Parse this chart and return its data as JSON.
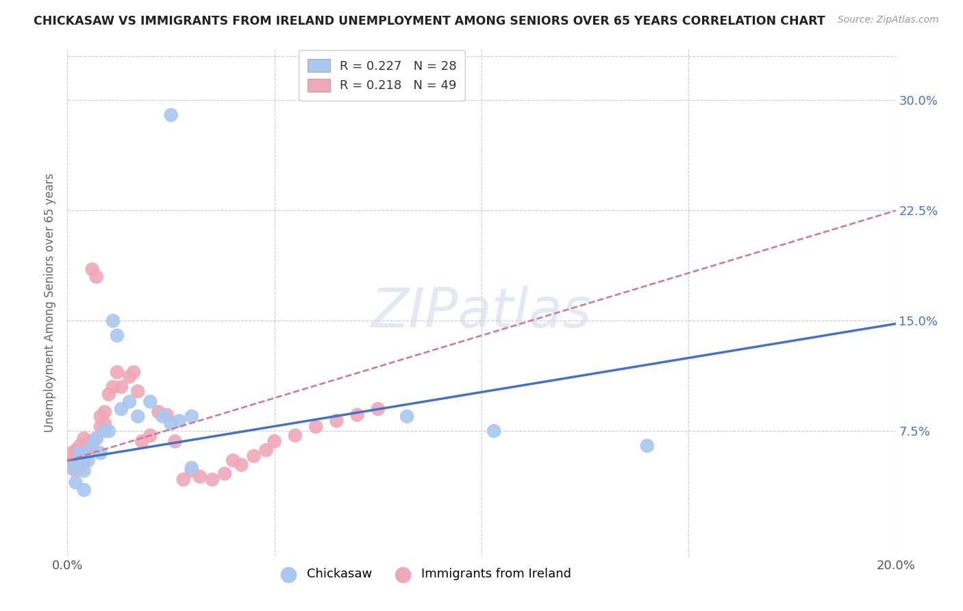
{
  "title": "CHICKASAW VS IMMIGRANTS FROM IRELAND UNEMPLOYMENT AMONG SENIORS OVER 65 YEARS CORRELATION CHART",
  "source": "Source: ZipAtlas.com",
  "ylabel": "Unemployment Among Seniors over 65 years",
  "xlim": [
    0.0,
    0.2
  ],
  "ylim": [
    -0.01,
    0.335
  ],
  "xtick_positions": [
    0.0,
    0.05,
    0.1,
    0.15,
    0.2
  ],
  "xtick_labels": [
    "0.0%",
    "",
    "",
    "",
    "20.0%"
  ],
  "ytick_positions": [
    0.075,
    0.15,
    0.225,
    0.3
  ],
  "ytick_labels": [
    "7.5%",
    "15.0%",
    "22.5%",
    "30.0%"
  ],
  "grid_color": "#cccccc",
  "background_color": "#ffffff",
  "chickasaw_color": "#a8c8f0",
  "ireland_color": "#f0a8b8",
  "line1_color": "#4472c4",
  "line2_color": "#d4748c",
  "chickasaw_x": [
    0.001,
    0.002,
    0.003,
    0.003,
    0.004,
    0.004,
    0.005,
    0.006,
    0.007,
    0.008,
    0.009,
    0.01,
    0.011,
    0.012,
    0.013,
    0.015,
    0.017,
    0.02,
    0.023,
    0.025,
    0.027,
    0.03,
    0.025,
    0.03,
    0.082,
    0.103,
    0.14,
    0.004
  ],
  "chickasaw_y": [
    0.05,
    0.04,
    0.055,
    0.06,
    0.048,
    0.058,
    0.055,
    0.065,
    0.07,
    0.06,
    0.075,
    0.075,
    0.15,
    0.14,
    0.09,
    0.095,
    0.085,
    0.095,
    0.085,
    0.08,
    0.082,
    0.05,
    0.29,
    0.085,
    0.085,
    0.075,
    0.065,
    0.035
  ],
  "ireland_x": [
    0.001,
    0.001,
    0.001,
    0.002,
    0.002,
    0.002,
    0.003,
    0.003,
    0.003,
    0.004,
    0.004,
    0.004,
    0.005,
    0.005,
    0.006,
    0.006,
    0.007,
    0.007,
    0.008,
    0.008,
    0.009,
    0.009,
    0.01,
    0.011,
    0.012,
    0.013,
    0.015,
    0.016,
    0.017,
    0.018,
    0.02,
    0.022,
    0.024,
    0.026,
    0.028,
    0.03,
    0.032,
    0.035,
    0.038,
    0.04,
    0.042,
    0.045,
    0.048,
    0.05,
    0.055,
    0.06,
    0.065,
    0.07,
    0.075
  ],
  "ireland_y": [
    0.05,
    0.055,
    0.06,
    0.048,
    0.055,
    0.062,
    0.05,
    0.058,
    0.065,
    0.055,
    0.062,
    0.07,
    0.06,
    0.068,
    0.185,
    0.065,
    0.07,
    0.18,
    0.078,
    0.085,
    0.08,
    0.088,
    0.1,
    0.105,
    0.115,
    0.105,
    0.112,
    0.115,
    0.102,
    0.068,
    0.072,
    0.088,
    0.086,
    0.068,
    0.042,
    0.048,
    0.044,
    0.042,
    0.046,
    0.055,
    0.052,
    0.058,
    0.062,
    0.068,
    0.072,
    0.078,
    0.082,
    0.086,
    0.09
  ],
  "line1_x0": 0.0,
  "line1_y0": 0.055,
  "line1_x1": 0.2,
  "line1_y1": 0.148,
  "line2_x0": 0.0,
  "line2_y0": 0.055,
  "line2_x1": 0.2,
  "line2_y1": 0.225
}
